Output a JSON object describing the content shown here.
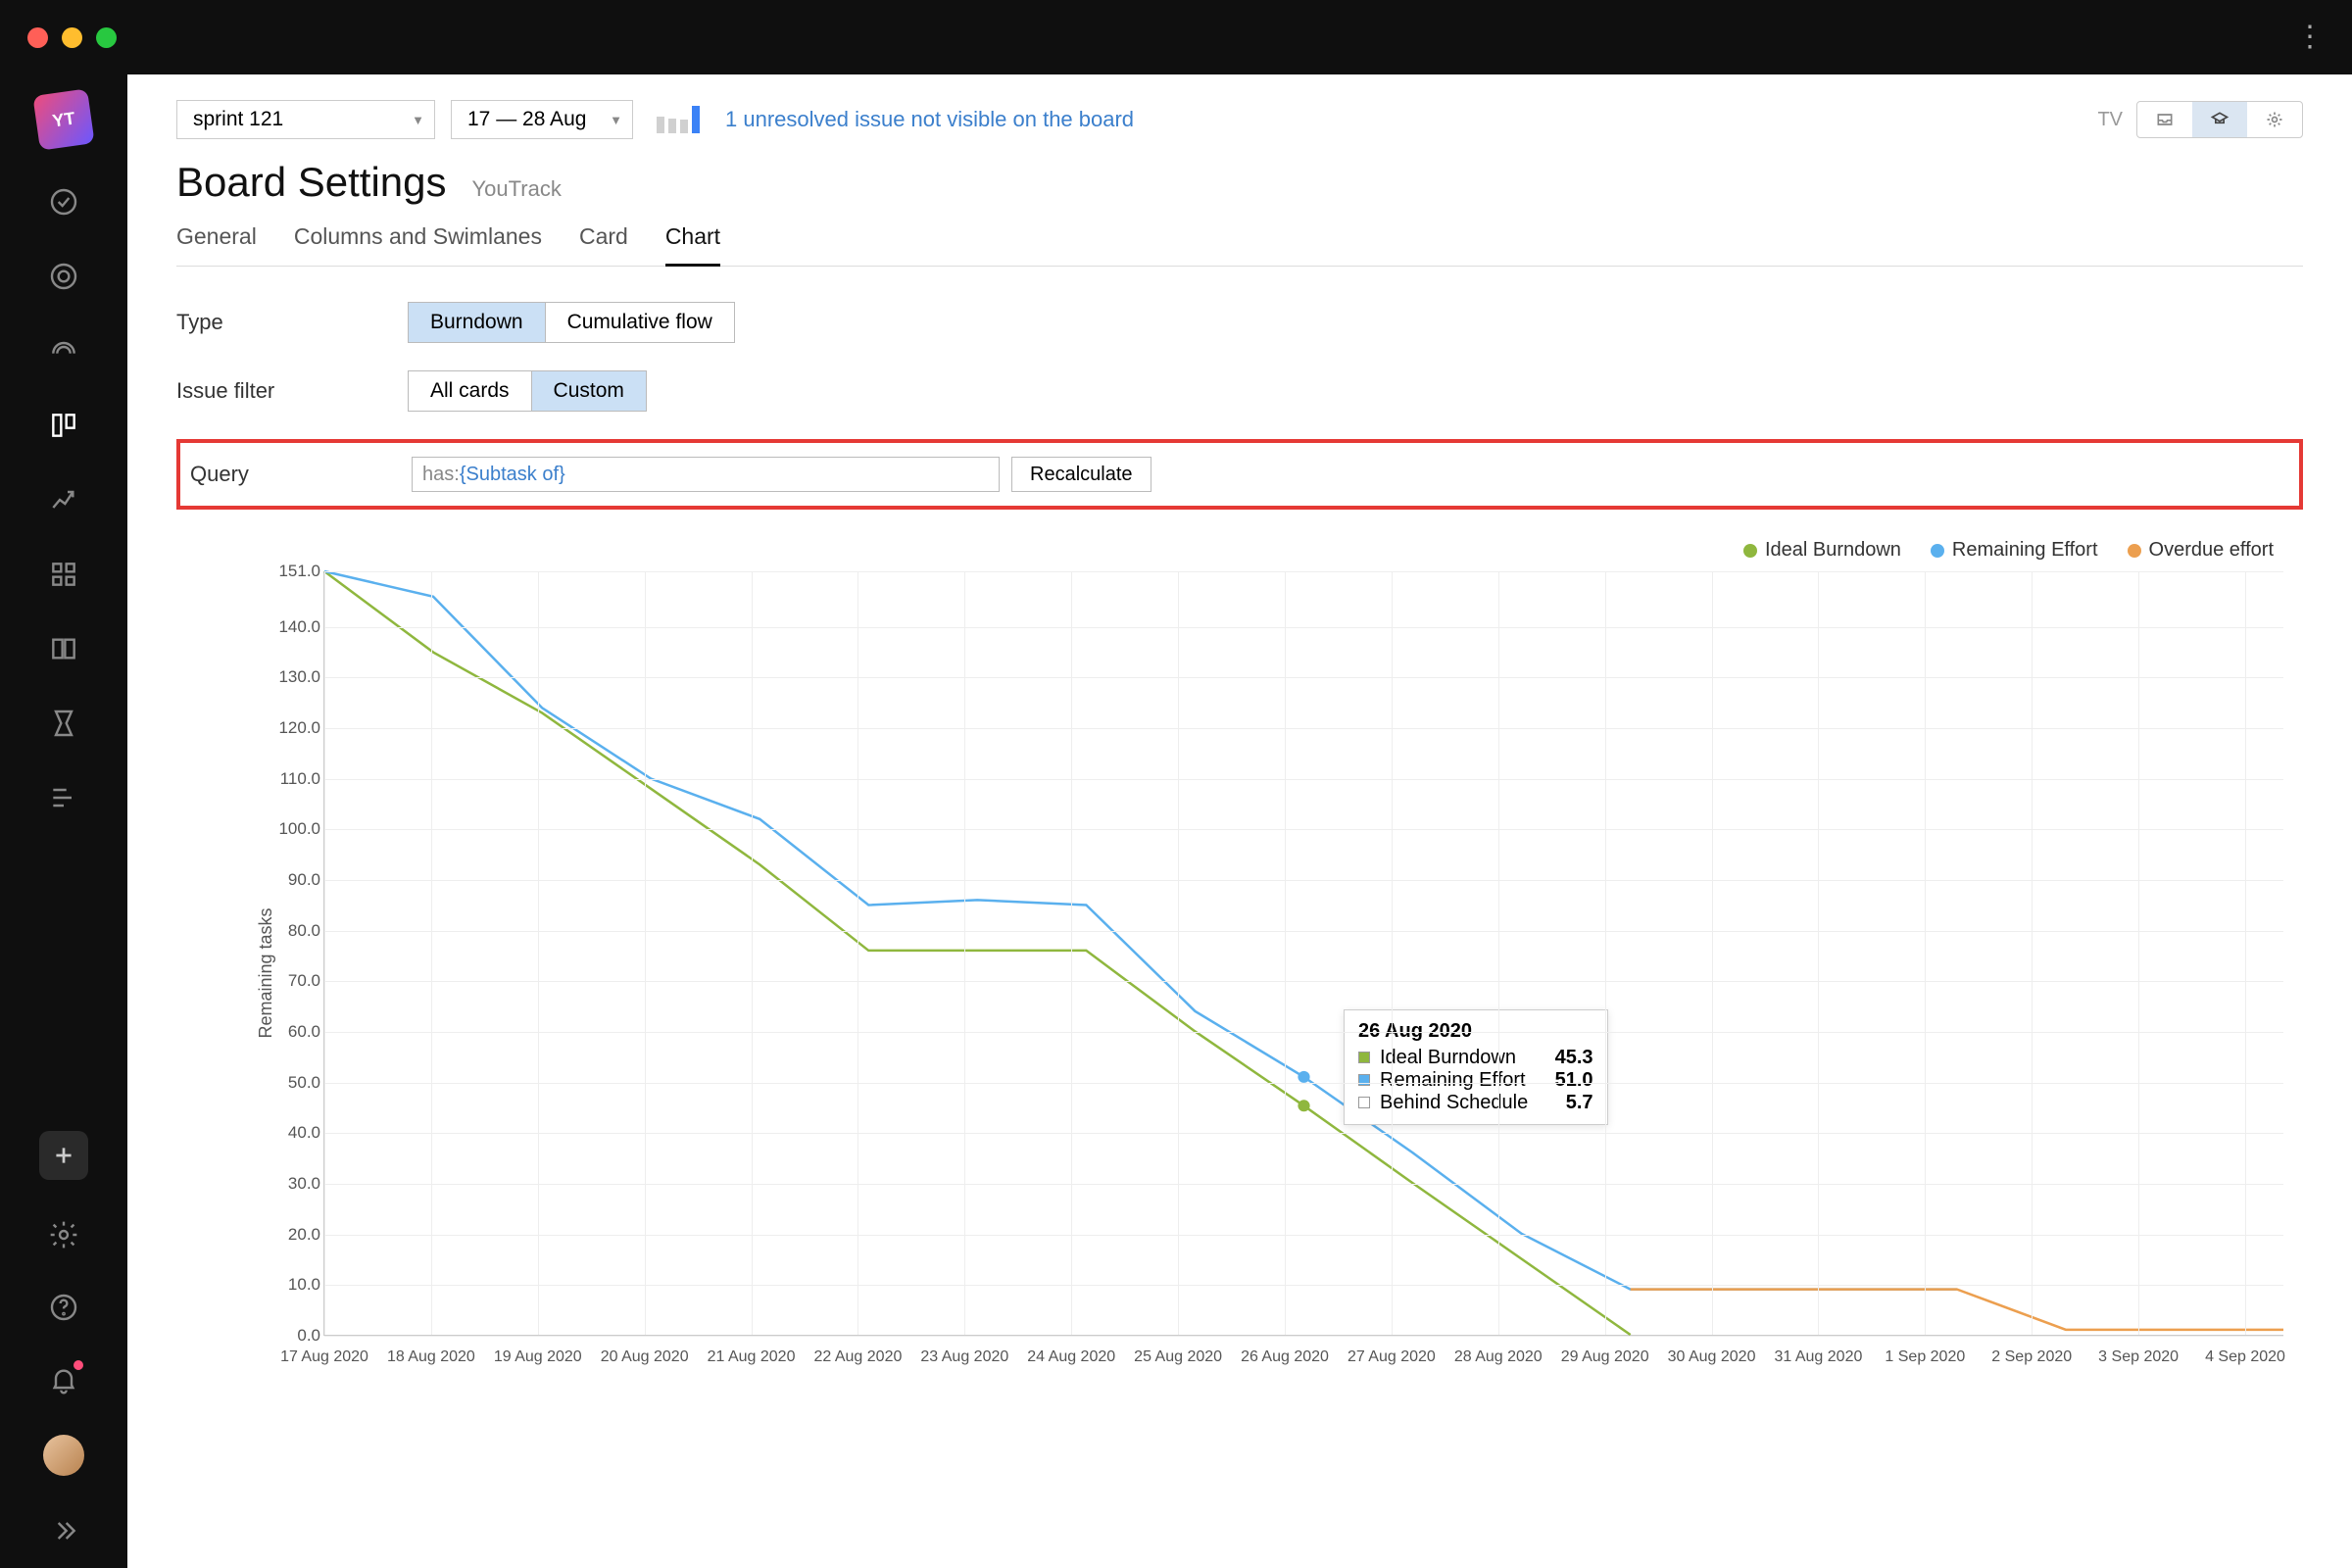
{
  "toolbar": {
    "sprint_select": "sprint 121",
    "date_select": "17 — 28 Aug",
    "warning": "1 unresolved issue not visible on the board",
    "tv_label": "TV",
    "mini_bars": [
      60,
      55,
      50,
      100
    ],
    "mini_bar_colors": [
      "#d0d0d0",
      "#d0d0d0",
      "#d0d0d0",
      "#3b82f6"
    ]
  },
  "page": {
    "title": "Board Settings",
    "subtitle": "YouTrack"
  },
  "tabs": {
    "items": [
      "General",
      "Columns and Swimlanes",
      "Card",
      "Chart"
    ],
    "active": "Chart"
  },
  "form": {
    "type_label": "Type",
    "type_options": [
      "Burndown",
      "Cumulative flow"
    ],
    "type_active": "Burndown",
    "filter_label": "Issue filter",
    "filter_options": [
      "All cards",
      "Custom"
    ],
    "filter_active": "Custom",
    "query_label": "Query",
    "query_prefix": "has: ",
    "query_value": "{Subtask of}",
    "recalc_label": "Recalculate"
  },
  "chart": {
    "ylabel": "Remaining tasks",
    "ymin": 0,
    "ymax": 151,
    "ytick_step": 10,
    "ytick_labels": [
      "0.0",
      "10.0",
      "20.0",
      "30.0",
      "40.0",
      "50.0",
      "60.0",
      "70.0",
      "80.0",
      "90.0",
      "100.0",
      "110.0",
      "120.0",
      "130.0",
      "140.0",
      "151.0"
    ],
    "x_labels": [
      "17 Aug 2020",
      "18 Aug 2020",
      "19 Aug 2020",
      "20 Aug 2020",
      "21 Aug 2020",
      "22 Aug 2020",
      "23 Aug 2020",
      "24 Aug 2020",
      "25 Aug 2020",
      "26 Aug 2020",
      "27 Aug 2020",
      "28 Aug 2020",
      "29 Aug 2020",
      "30 Aug 2020",
      "31 Aug 2020",
      "1 Sep 2020",
      "2 Sep 2020",
      "3 Sep 2020",
      "4 Sep 2020"
    ],
    "legend": [
      {
        "label": "Ideal Burndown",
        "color": "#8fb73e"
      },
      {
        "label": "Remaining Effort",
        "color": "#5ab0ee"
      },
      {
        "label": "Overdue effort",
        "color": "#ec9f4f"
      }
    ],
    "series": {
      "ideal": {
        "color": "#8fb73e",
        "width": 2.5,
        "data": [
          151,
          135,
          123,
          108,
          93,
          76,
          76,
          76,
          60,
          45.3,
          30,
          15,
          0,
          null,
          null,
          null,
          null,
          null,
          null
        ]
      },
      "remaining": {
        "color": "#5ab0ee",
        "width": 2.5,
        "data": [
          151,
          146,
          124,
          110,
          102,
          85,
          86,
          85,
          64,
          51,
          36,
          20,
          9,
          9,
          9,
          9,
          null,
          null,
          null
        ]
      },
      "overdue": {
        "color": "#ec9f4f",
        "width": 2.5,
        "data": [
          null,
          null,
          null,
          null,
          null,
          null,
          null,
          null,
          null,
          null,
          null,
          null,
          9,
          9,
          9,
          9,
          1,
          1,
          1
        ]
      }
    },
    "marker": {
      "x_index": 9,
      "ideal_y": 45.3,
      "remaining_y": 51
    },
    "tooltip": {
      "title": "26 Aug 2020",
      "rows": [
        {
          "color": "#8fb73e",
          "label": "Ideal Burndown",
          "value": "45.3"
        },
        {
          "color": "#5ab0ee",
          "label": "Remaining Effort",
          "value": "51.0"
        },
        {
          "color": "#ffffff",
          "label": "Behind Schedule",
          "value": "5.7"
        }
      ]
    },
    "background": "#ffffff",
    "grid_color": "#eeeeee"
  }
}
